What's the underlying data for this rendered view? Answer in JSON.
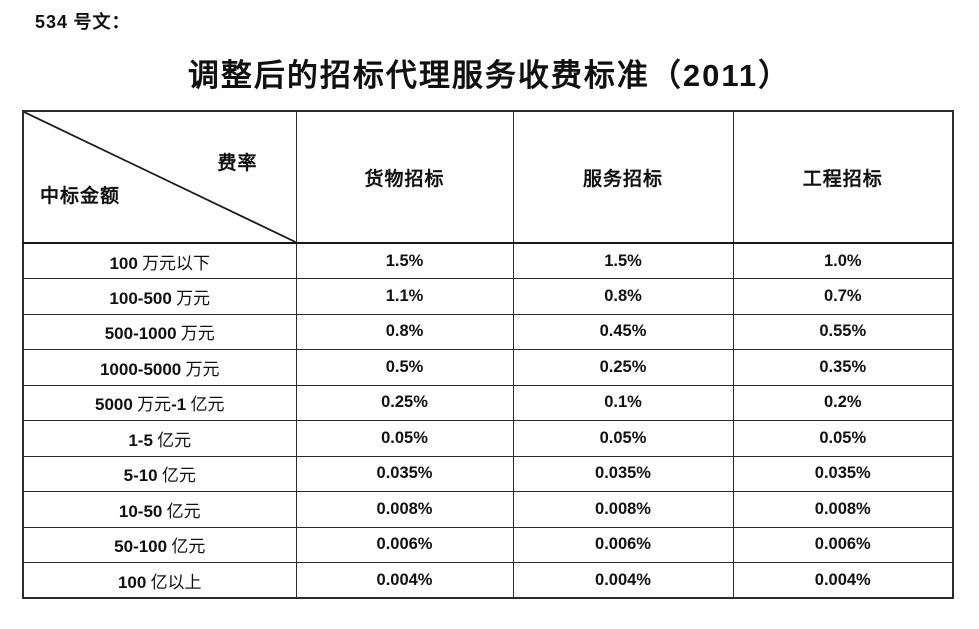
{
  "doc": {
    "doc_number": "534 号文：",
    "title": "调整后的招标代理服务收费标准（2011）"
  },
  "table": {
    "corner": {
      "top_right_label": "费率",
      "bottom_left_label": "中标金额"
    },
    "columns": [
      "货物招标",
      "服务招标",
      "工程招标"
    ],
    "rows": [
      {
        "label": "100 万元以下",
        "values": [
          "1.5%",
          "1.5%",
          "1.0%"
        ]
      },
      {
        "label": "100-500 万元",
        "values": [
          "1.1%",
          "0.8%",
          "0.7%"
        ]
      },
      {
        "label": "500-1000 万元",
        "values": [
          "0.8%",
          "0.45%",
          "0.55%"
        ]
      },
      {
        "label": "1000-5000 万元",
        "values": [
          "0.5%",
          "0.25%",
          "0.35%"
        ]
      },
      {
        "label": "5000 万元-1 亿元",
        "values": [
          "0.25%",
          "0.1%",
          "0.2%"
        ]
      },
      {
        "label": "1-5 亿元",
        "values": [
          "0.05%",
          "0.05%",
          "0.05%"
        ]
      },
      {
        "label": "5-10 亿元",
        "values": [
          "0.035%",
          "0.035%",
          "0.035%"
        ]
      },
      {
        "label": "10-50 亿元",
        "values": [
          "0.008%",
          "0.008%",
          "0.008%"
        ]
      },
      {
        "label": "50-100 亿元",
        "values": [
          "0.006%",
          "0.006%",
          "0.006%"
        ]
      },
      {
        "label": "100 亿以上",
        "values": [
          "0.004%",
          "0.004%",
          "0.004%"
        ]
      }
    ]
  },
  "colors": {
    "text": "#111111",
    "border": "#2b2b2b",
    "background": "#ffffff"
  }
}
